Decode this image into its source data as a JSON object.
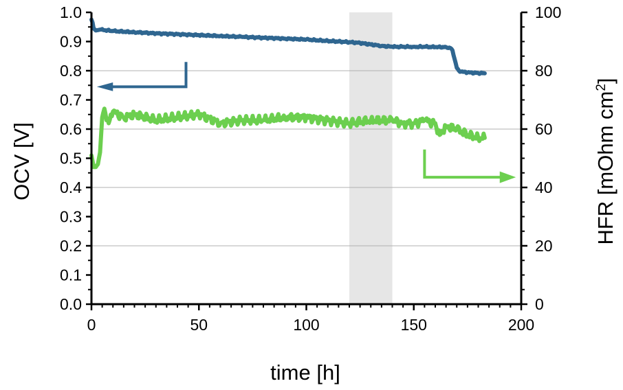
{
  "chart_data": {
    "type": "line",
    "xlabel": "time [h]",
    "ylabel_left": "OCV [V]",
    "ylabel_right": "HFR [mOhm cm",
    "ylabel_right_sup": "2",
    "ylabel_right_close": "]",
    "xlim": [
      0,
      200
    ],
    "ylim_left": [
      0,
      1.0
    ],
    "ylim_right": [
      0,
      100
    ],
    "x_ticks": [
      "0",
      "50",
      "100",
      "150",
      "200"
    ],
    "y_left_ticks": [
      "0.0",
      "0.1",
      "0.2",
      "0.3",
      "0.4",
      "0.5",
      "0.6",
      "0.7",
      "0.8",
      "0.9",
      "1.0"
    ],
    "y_right_ticks": [
      "0",
      "20",
      "40",
      "60",
      "80",
      "100"
    ],
    "grid": "horizontal",
    "shaded_region": {
      "x": [
        120,
        140
      ],
      "color": "#e6e6e6"
    },
    "series": [
      {
        "axis": "left",
        "color": "#2f6690",
        "x": [
          0,
          0.5,
          1,
          2,
          4,
          10,
          20,
          30,
          40,
          50,
          60,
          70,
          80,
          90,
          100,
          110,
          120,
          125,
          130,
          135,
          140,
          145,
          150,
          155,
          160,
          165,
          167,
          168,
          169,
          170,
          171,
          172,
          175,
          180,
          183
        ],
        "y": [
          0.975,
          0.965,
          0.945,
          0.938,
          0.941,
          0.936,
          0.932,
          0.928,
          0.925,
          0.922,
          0.919,
          0.916,
          0.913,
          0.91,
          0.907,
          0.902,
          0.898,
          0.895,
          0.89,
          0.885,
          0.882,
          0.882,
          0.882,
          0.882,
          0.881,
          0.881,
          0.878,
          0.87,
          0.84,
          0.81,
          0.8,
          0.797,
          0.794,
          0.792,
          0.791
        ]
      },
      {
        "axis": "right",
        "color": "#6ccf4f",
        "x": [
          0,
          1,
          2,
          3,
          4,
          5,
          6,
          8,
          10,
          15,
          20,
          30,
          40,
          50,
          60,
          70,
          80,
          90,
          100,
          110,
          120,
          130,
          140,
          145,
          150,
          155,
          160,
          162,
          165,
          170,
          175,
          180,
          183
        ],
        "y": [
          51,
          47,
          47,
          48,
          52,
          64,
          67,
          62,
          66,
          64,
          65,
          63,
          64,
          65,
          62,
          63,
          63,
          64,
          64,
          63,
          62,
          63,
          63,
          62,
          62,
          63,
          62,
          58,
          61,
          60,
          58,
          57,
          57
        ]
      }
    ],
    "annotations": [
      {
        "type": "arrow",
        "direction": "left",
        "color": "#2f6690",
        "points_to": "left axis"
      },
      {
        "type": "arrow",
        "direction": "right",
        "color": "#6ccf4f",
        "points_to": "right axis"
      }
    ]
  }
}
